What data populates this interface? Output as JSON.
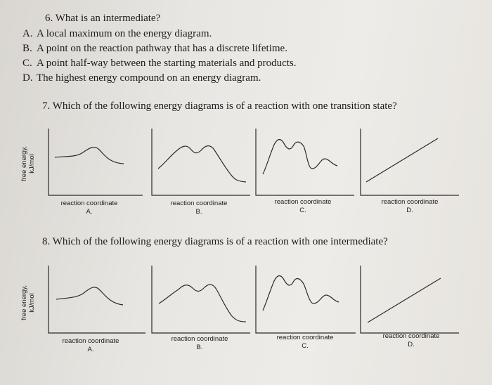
{
  "q6": {
    "question": "6. What is an intermediate?",
    "options": [
      {
        "letter": "A.",
        "text": "A local maximum on the energy diagram."
      },
      {
        "letter": "B.",
        "text": "A point on the reaction pathway that has a discrete lifetime."
      },
      {
        "letter": "C.",
        "text": "A point half-way between the starting materials and products."
      },
      {
        "letter": "D.",
        "text": "The highest energy compound on an energy diagram."
      }
    ]
  },
  "q7": {
    "question": "7. Which of the following energy diagrams is of a reaction with one transition state?",
    "y_axis_label_line1": "free energy,",
    "y_axis_label_line2": "kJ/mol",
    "diagrams": [
      {
        "x_label": "reaction coordinate",
        "letter": "A."
      },
      {
        "x_label": "reaction coordinate",
        "letter": "B."
      },
      {
        "x_label": "reaction coordinate",
        "letter": "C."
      },
      {
        "x_label": "reaction coordinate",
        "letter": "D."
      }
    ]
  },
  "q8": {
    "question": "8. Which of the following energy diagrams is of a reaction with one intermediate?",
    "y_axis_label_line1": "free energy,",
    "y_axis_label_line2": "kJ/mol",
    "diagrams": [
      {
        "x_label": "reaction coordinate",
        "letter": "A."
      },
      {
        "x_label": "reaction coordinate",
        "letter": "B."
      },
      {
        "x_label": "reaction coordinate",
        "letter": "C."
      },
      {
        "x_label": "reaction coordinate",
        "letter": "D."
      }
    ]
  }
}
